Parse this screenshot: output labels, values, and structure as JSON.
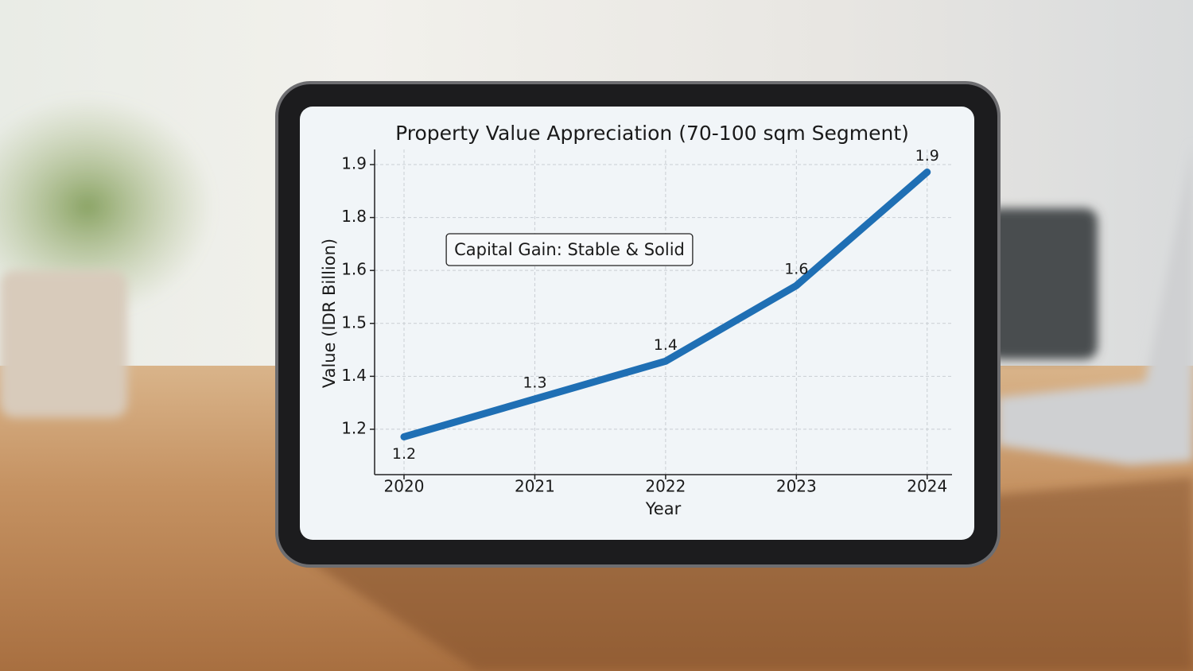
{
  "chart_data": {
    "type": "line",
    "title": "Property Value Appreciation (70-100 sqm Segment)",
    "x_label": "Year",
    "y_label": "Value (IDR Billion)",
    "annotation": "Capital Gain: Stable & Solid",
    "x": [
      2020,
      2021,
      2022,
      2023,
      2024
    ],
    "values": [
      1.2,
      1.3,
      1.4,
      1.6,
      1.9
    ],
    "color": "#1f6fb4",
    "xlim": [
      2019.775,
      2024.19
    ],
    "xticks": [
      2020,
      2021,
      2022,
      2023,
      2024
    ],
    "ylim": [
      1.1,
      1.96
    ],
    "yticks": [
      {
        "value": 1.22,
        "label": "1.2"
      },
      {
        "value": 1.36,
        "label": "1.4"
      },
      {
        "value": 1.5,
        "label": "1.5"
      },
      {
        "value": 1.64,
        "label": "1.6"
      },
      {
        "value": 1.78,
        "label": "1.8"
      },
      {
        "value": 1.92,
        "label": "1.9"
      }
    ],
    "grid": true
  }
}
